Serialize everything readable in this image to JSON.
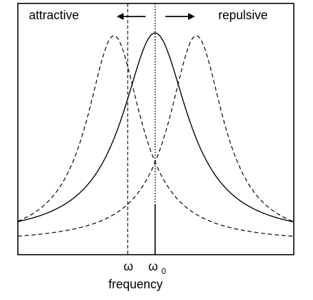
{
  "labels": {
    "attractive": "attractive",
    "repulsive": "repulsive",
    "omega": "ω",
    "omega0_base": "ω",
    "omega0_sub": "0",
    "xlabel": "frequency"
  },
  "curves": {
    "center_line": "solid",
    "shifted_lines": "dashed",
    "center_peak_marker": "dotted-vertical",
    "shifted_marker": "dashed-vertical"
  },
  "colors": {
    "ink": "#000000",
    "background": "#ffffff"
  },
  "arrows": [
    {
      "name": "left-arrow",
      "direction": "left"
    },
    {
      "name": "right-arrow",
      "direction": "right"
    }
  ]
}
